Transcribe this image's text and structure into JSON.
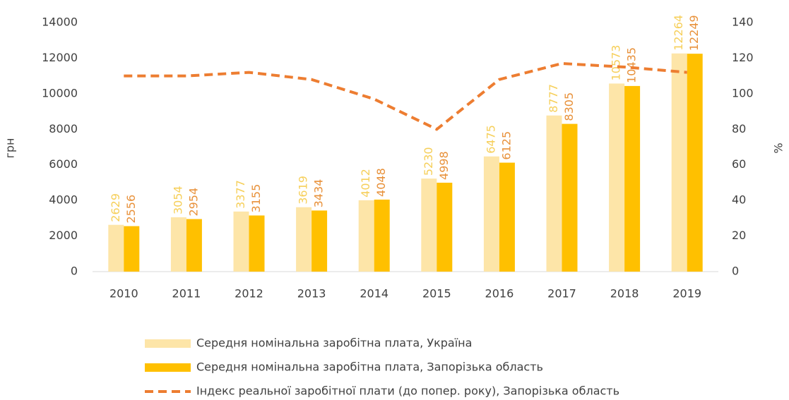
{
  "chart_data": {
    "type": "bar",
    "categories": [
      "2010",
      "2011",
      "2012",
      "2013",
      "2014",
      "2015",
      "2016",
      "2017",
      "2018",
      "2019"
    ],
    "y_label": "грн",
    "y2_label": "%",
    "ylim": [
      0,
      14000
    ],
    "yticks": [
      0,
      2000,
      4000,
      6000,
      8000,
      10000,
      12000,
      14000
    ],
    "y2lim": [
      0,
      140
    ],
    "y2ticks": [
      0,
      20,
      40,
      60,
      80,
      100,
      120,
      140
    ],
    "series": [
      {
        "name": "Середня номінальна заробітна плата, Україна",
        "type": "bar",
        "color": "#fde5a8",
        "label_color": "#f6cf5a",
        "values": [
          2629,
          3054,
          3377,
          3619,
          4012,
          5230,
          6475,
          8777,
          10573,
          12264
        ]
      },
      {
        "name": "Середня номінальна заробітна плата, Запорізька область",
        "type": "bar",
        "color": "#ffc000",
        "label_color": "#e8913a",
        "values": [
          2556,
          2954,
          3155,
          3434,
          4048,
          4998,
          6125,
          8305,
          10435,
          12249
        ]
      },
      {
        "name": "Індекс реальної заробітної плати (до попер. року), Запорізька область",
        "type": "line",
        "axis": "y2",
        "color": "#ed7d31",
        "dashed": true,
        "values": [
          110,
          110,
          112,
          108,
          97,
          80,
          108,
          117,
          115,
          112
        ]
      }
    ]
  }
}
